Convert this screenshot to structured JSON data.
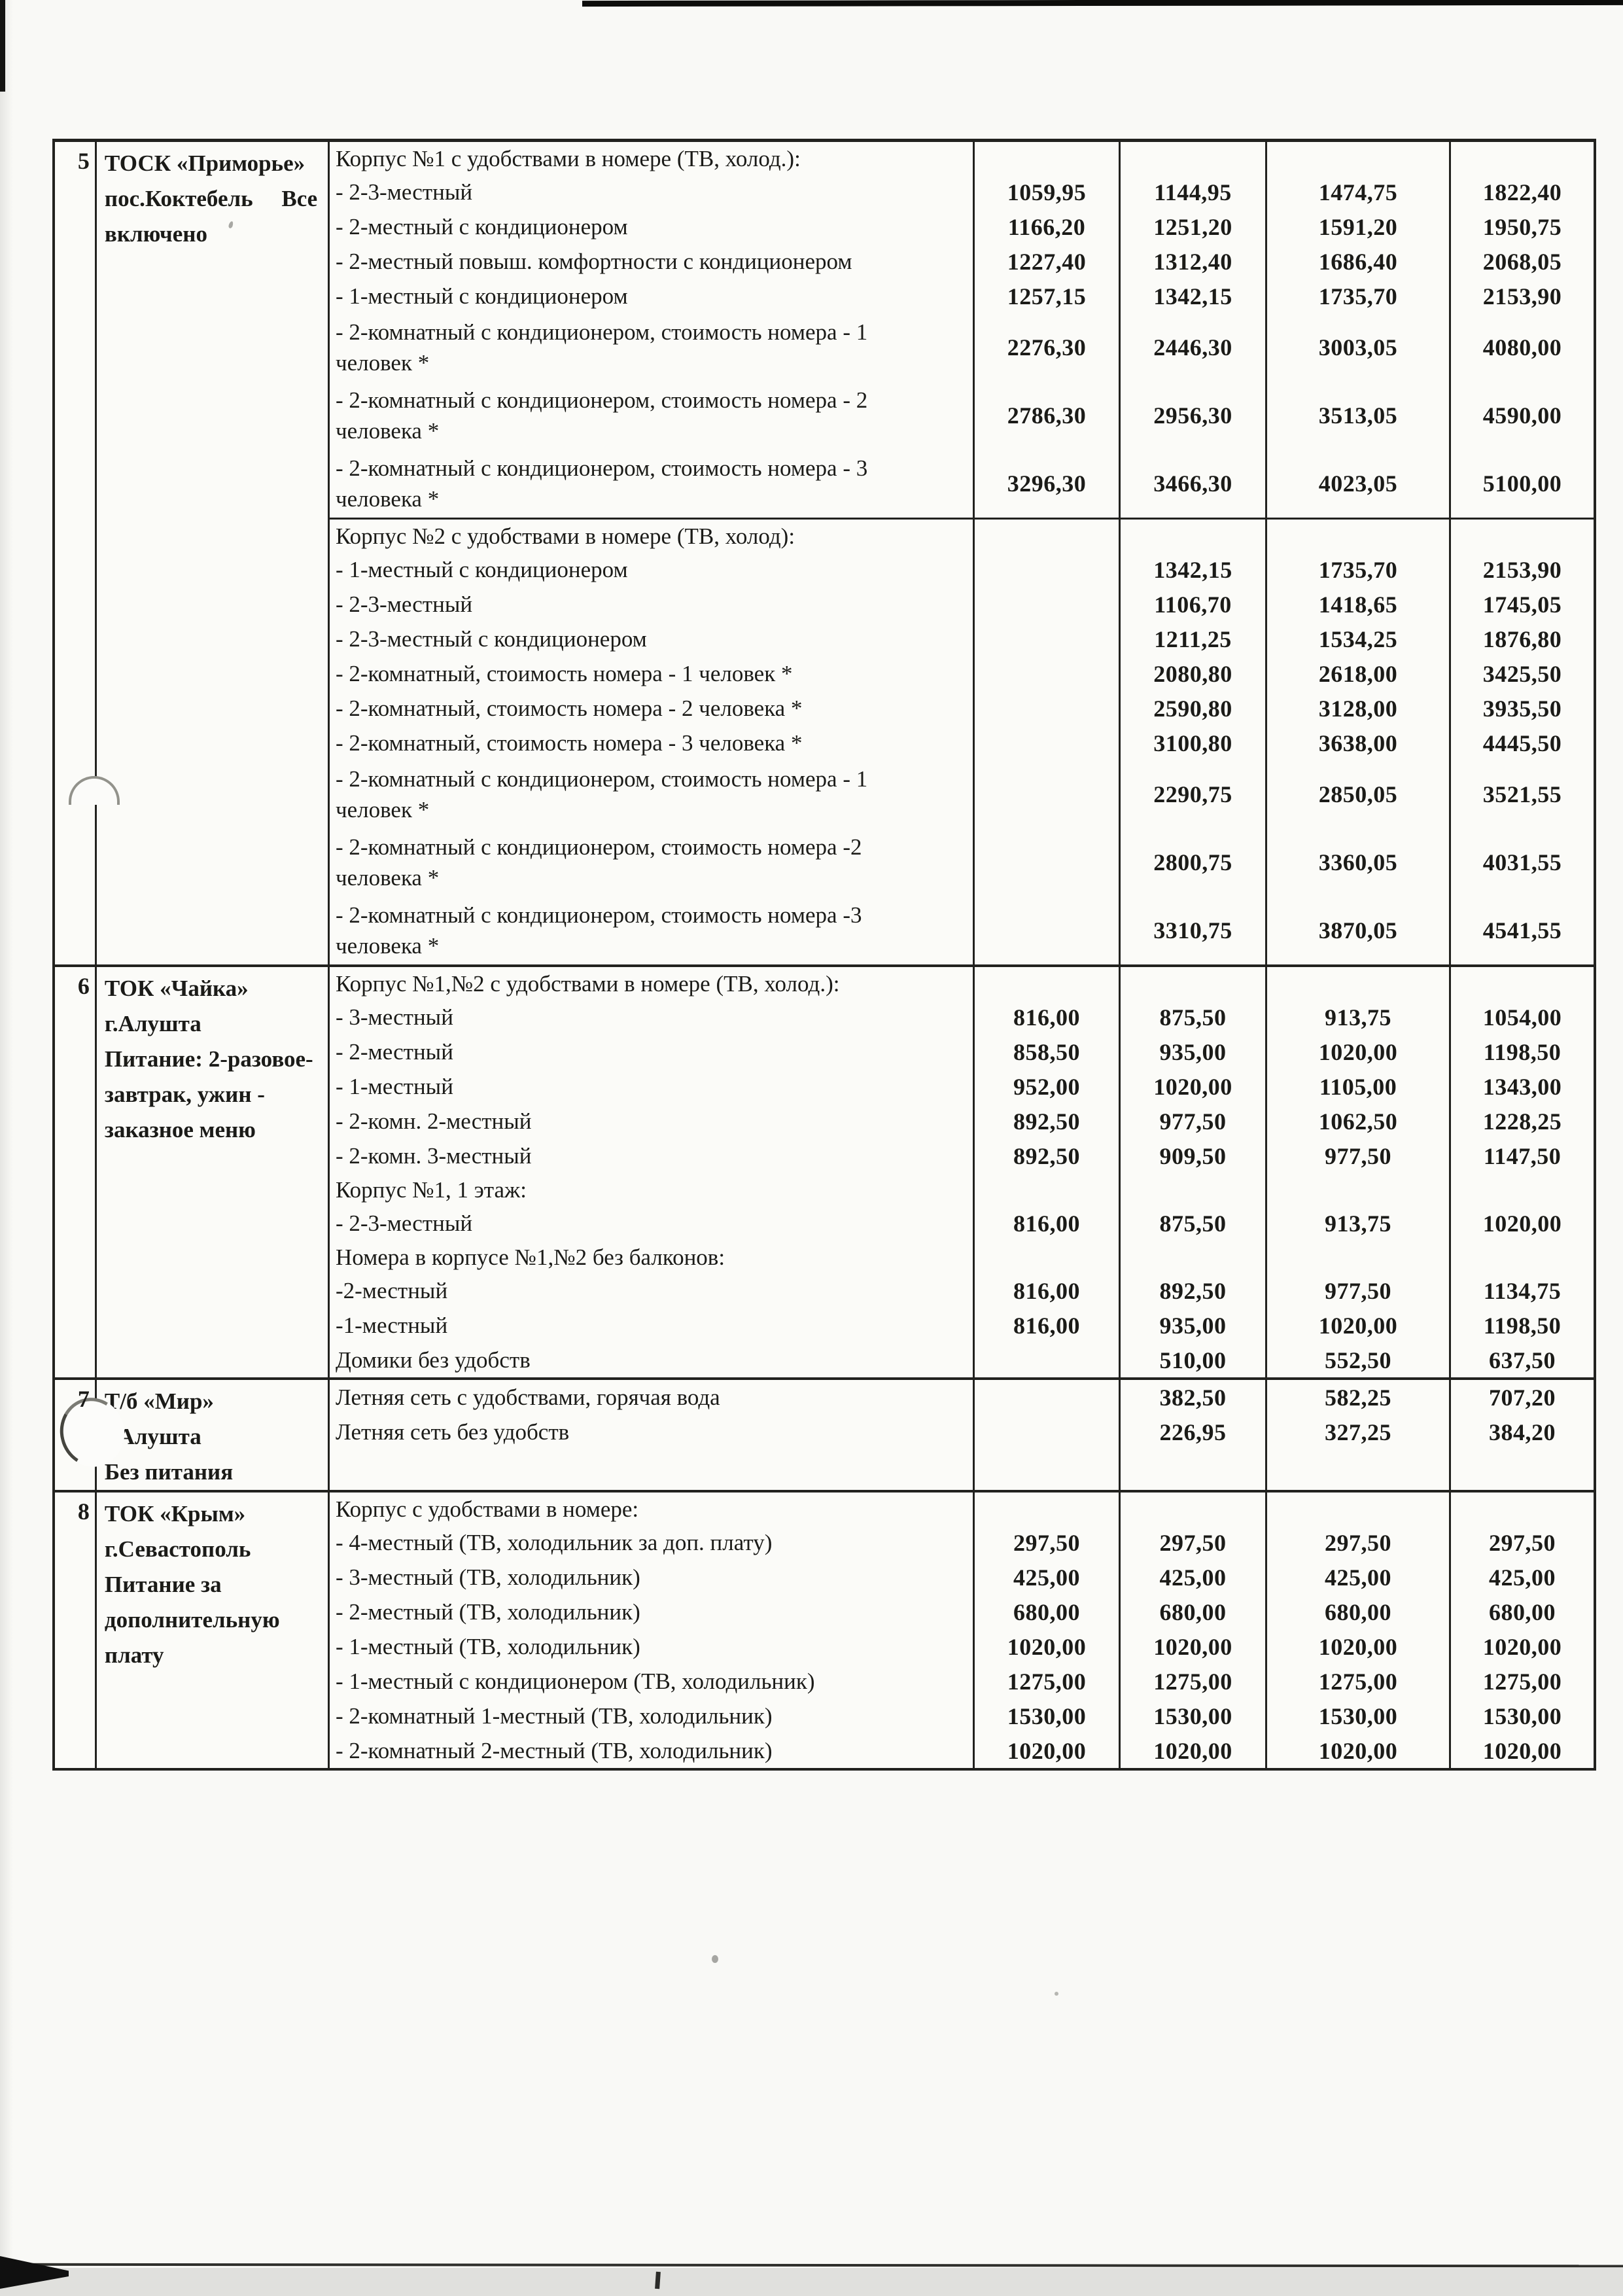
{
  "colors": {
    "ink": "#1b1b18",
    "paper": "#f9f9f6",
    "table_border": "#22221f"
  },
  "table": {
    "sections": [
      {
        "num": "5",
        "name_lines": [
          "ТОСК «Приморье»",
          "пос.Коктебель     Все",
          "включено"
        ],
        "rows": [
          {
            "type": "sub",
            "desc": "Корпус №1 с удобствами в номере (ТВ, холод.):",
            "prices": [
              "",
              "",
              "",
              ""
            ]
          },
          {
            "type": "single",
            "desc": "- 2-3-местный",
            "prices": [
              "1059,95",
              "1144,95",
              "1474,75",
              "1822,40"
            ]
          },
          {
            "type": "single",
            "desc": "- 2-местный с кондиционером",
            "prices": [
              "1166,20",
              "1251,20",
              "1591,20",
              "1950,75"
            ]
          },
          {
            "type": "single",
            "desc": "- 2-местный повыш. комфортности с кондиционером",
            "prices": [
              "1227,40",
              "1312,40",
              "1686,40",
              "2068,05"
            ]
          },
          {
            "type": "single",
            "desc": "- 1-местный с кондиционером",
            "prices": [
              "1257,15",
              "1342,15",
              "1735,70",
              "2153,90"
            ]
          },
          {
            "type": "double",
            "desc": "- 2-комнатный  с кондиционером, стоимость номера - 1\nчеловек *",
            "prices": [
              "2276,30",
              "2446,30",
              "3003,05",
              "4080,00"
            ]
          },
          {
            "type": "double",
            "desc": "- 2-комнатный  с кондиционером, стоимость номера - 2\nчеловека *",
            "prices": [
              "2786,30",
              "2956,30",
              "3513,05",
              "4590,00"
            ]
          },
          {
            "type": "double",
            "desc": "- 2-комнатный  с кондиционером, стоимость номера - 3\nчеловека *",
            "prices": [
              "3296,30",
              "3466,30",
              "4023,05",
              "5100,00"
            ]
          },
          {
            "type": "sub",
            "rule_top": true,
            "desc": "Корпус №2 с удобствами в номере (ТВ, холод):",
            "prices": [
              "",
              "",
              "",
              ""
            ]
          },
          {
            "type": "single",
            "desc": "- 1-местный с кондиционером",
            "prices": [
              "",
              "1342,15",
              "1735,70",
              "2153,90"
            ]
          },
          {
            "type": "single",
            "desc": "- 2-3-местный",
            "prices": [
              "",
              "1106,70",
              "1418,65",
              "1745,05"
            ]
          },
          {
            "type": "single",
            "desc": "- 2-3-местный с кондиционером",
            "prices": [
              "",
              "1211,25",
              "1534,25",
              "1876,80"
            ]
          },
          {
            "type": "single",
            "desc": "- 2-комнатный, стоимость номера - 1 человек *",
            "prices": [
              "",
              "2080,80",
              "2618,00",
              "3425,50"
            ]
          },
          {
            "type": "single",
            "desc": "- 2-комнатный, стоимость номера - 2 человека *",
            "prices": [
              "",
              "2590,80",
              "3128,00",
              "3935,50"
            ]
          },
          {
            "type": "single",
            "desc": "- 2-комнатный, стоимость номера - 3 человека *",
            "prices": [
              "",
              "3100,80",
              "3638,00",
              "4445,50"
            ]
          },
          {
            "type": "double",
            "desc": "- 2-комнатный  с кондиционером, стоимость номера - 1\nчеловек *",
            "prices": [
              "",
              "2290,75",
              "2850,05",
              "3521,55"
            ]
          },
          {
            "type": "double",
            "desc": "- 2-комнатный  с кондиционером, стоимость номера -2\nчеловека *",
            "prices": [
              "",
              "2800,75",
              "3360,05",
              "4031,55"
            ]
          },
          {
            "type": "double",
            "desc": "- 2-комнатный  с кондиционером, стоимость номера -3\nчеловека *",
            "prices": [
              "",
              "3310,75",
              "3870,05",
              "4541,55"
            ]
          }
        ]
      },
      {
        "num": "6",
        "name_lines": [
          "ТОК «Чайка»",
          "г.Алушта",
          "Питание: 2-разовое-",
          "завтрак, ужин -",
          "заказное меню"
        ],
        "rows": [
          {
            "type": "sub",
            "desc": "Корпус №1,№2 с удобствами в номере (ТВ, холод.):",
            "prices": [
              "",
              "",
              "",
              ""
            ]
          },
          {
            "type": "single",
            "desc": "- 3-местный",
            "prices": [
              "816,00",
              "875,50",
              "913,75",
              "1054,00"
            ]
          },
          {
            "type": "single",
            "desc": "- 2-местный",
            "prices": [
              "858,50",
              "935,00",
              "1020,00",
              "1198,50"
            ]
          },
          {
            "type": "single",
            "desc": "- 1-местный",
            "prices": [
              "952,00",
              "1020,00",
              "1105,00",
              "1343,00"
            ]
          },
          {
            "type": "single",
            "desc": "- 2-комн. 2-местный",
            "prices": [
              "892,50",
              "977,50",
              "1062,50",
              "1228,25"
            ]
          },
          {
            "type": "single",
            "desc": "- 2-комн. 3-местный",
            "prices": [
              "892,50",
              "909,50",
              "977,50",
              "1147,50"
            ]
          },
          {
            "type": "sub",
            "desc": "Корпус №1, 1 этаж:",
            "prices": [
              "",
              "",
              "",
              ""
            ]
          },
          {
            "type": "single",
            "desc": "- 2-3-местный",
            "prices": [
              "816,00",
              "875,50",
              "913,75",
              "1020,00"
            ]
          },
          {
            "type": "sub",
            "desc": "Номера в корпусе №1,№2 без балконов:",
            "prices": [
              "",
              "",
              "",
              ""
            ]
          },
          {
            "type": "single",
            "desc": "-2-местный",
            "prices": [
              "816,00",
              "892,50",
              "977,50",
              "1134,75"
            ]
          },
          {
            "type": "single",
            "desc": "-1-местный",
            "prices": [
              "816,00",
              "935,00",
              "1020,00",
              "1198,50"
            ]
          },
          {
            "type": "single",
            "desc": "Домики без удобств",
            "prices": [
              "",
              "510,00",
              "552,50",
              "637,50"
            ]
          }
        ]
      },
      {
        "num": "7",
        "name_lines": [
          "Т/б «Мир»",
          "г.Алушта",
          "Без питания"
        ],
        "rows": [
          {
            "type": "single",
            "desc": "Летняя сеть с удобствами, горячая вода",
            "prices": [
              "",
              "382,50",
              "582,25",
              "707,20"
            ]
          },
          {
            "type": "single",
            "desc": "Летняя сеть без удобств",
            "prices": [
              "",
              "226,95",
              "327,25",
              "384,20"
            ]
          }
        ]
      },
      {
        "num": "8",
        "name_lines": [
          "ТОК «Крым»",
          "г.Севастополь",
          "Питание за",
          "дополнительную",
          "плату"
        ],
        "rows": [
          {
            "type": "sub",
            "desc": "Корпус с удобствами в номере:",
            "prices": [
              "",
              "",
              "",
              ""
            ]
          },
          {
            "type": "single",
            "desc": "- 4-местный (ТВ, холодильник за доп. плату)",
            "prices": [
              "297,50",
              "297,50",
              "297,50",
              "297,50"
            ]
          },
          {
            "type": "single",
            "desc": "- 3-местный (ТВ, холодильник)",
            "prices": [
              "425,00",
              "425,00",
              "425,00",
              "425,00"
            ]
          },
          {
            "type": "single",
            "desc": "- 2-местный (ТВ, холодильник)",
            "prices": [
              "680,00",
              "680,00",
              "680,00",
              "680,00"
            ]
          },
          {
            "type": "single",
            "desc": "- 1-местный (ТВ, холодильник)",
            "prices": [
              "1020,00",
              "1020,00",
              "1020,00",
              "1020,00"
            ]
          },
          {
            "type": "single",
            "desc": "- 1-местный с кондиционером (ТВ, холодильник)",
            "prices": [
              "1275,00",
              "1275,00",
              "1275,00",
              "1275,00"
            ]
          },
          {
            "type": "single",
            "desc": "- 2-комнатный 1-местный  (ТВ, холодильник)",
            "prices": [
              "1530,00",
              "1530,00",
              "1530,00",
              "1530,00"
            ]
          },
          {
            "type": "single",
            "desc": "- 2-комнатный 2-местный (ТВ, холодильник)",
            "prices": [
              "1020,00",
              "1020,00",
              "1020,00",
              "1020,00"
            ]
          }
        ]
      }
    ]
  }
}
